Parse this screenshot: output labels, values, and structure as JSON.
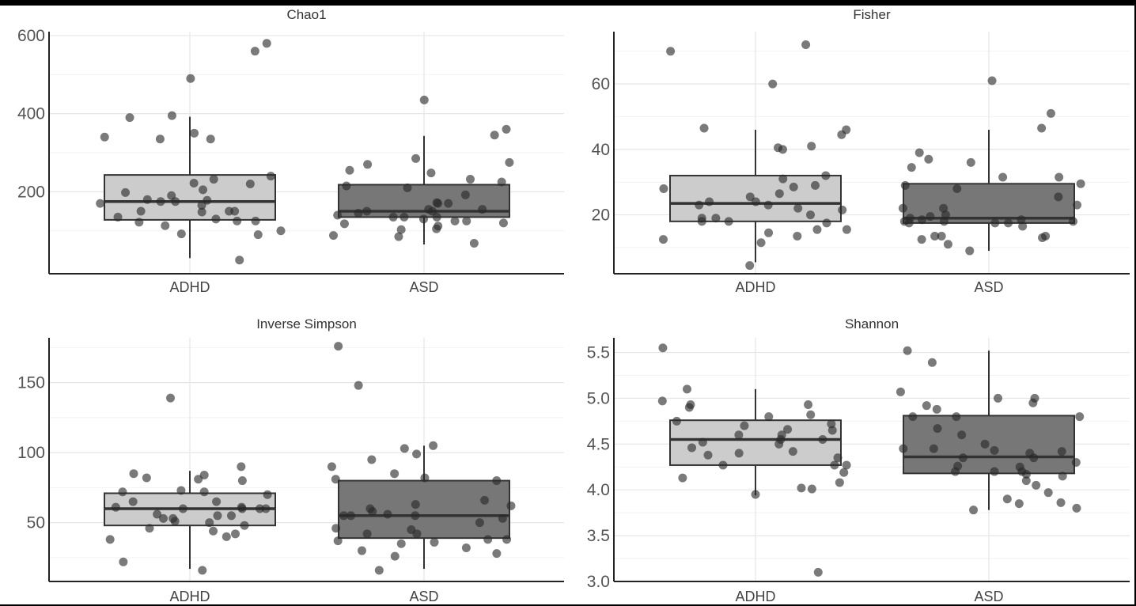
{
  "chart_data": [
    {
      "type": "box",
      "title": "Chao1",
      "categories": [
        "ADHD",
        "ASD"
      ],
      "yticks": [
        200,
        400,
        600
      ],
      "ylim": [
        -10,
        610
      ],
      "fill_colors": [
        "#cccccc",
        "#777777"
      ],
      "boxes": [
        {
          "group": "ADHD",
          "q1": 128,
          "median": 175,
          "q3": 243,
          "whisker_low": 30,
          "whisker_high": 392
        },
        {
          "group": "ASD",
          "q1": 135,
          "median": 150,
          "q3": 218,
          "whisker_low": 65,
          "whisker_high": 343
        }
      ],
      "points": [
        {
          "group": "ADHD",
          "values": [
            150,
            148,
            92,
            180,
            220,
            125,
            490,
            350,
            222,
            170,
            178,
            335,
            190,
            560,
            335,
            175,
            150,
            100,
            150,
            90,
            125,
            340,
            232,
            240,
            122,
            25,
            198,
            580,
            390,
            175,
            165,
            113,
            395,
            205,
            135,
            130
          ]
        },
        {
          "group": "ASD",
          "values": [
            118,
            85,
            135,
            360,
            248,
            135,
            105,
            170,
            172,
            103,
            225,
            155,
            270,
            232,
            125,
            275,
            285,
            120,
            435,
            155,
            130,
            255,
            215,
            210,
            345,
            112,
            145,
            150,
            68,
            88,
            170,
            140,
            135,
            150,
            125,
            192
          ]
        }
      ]
    },
    {
      "type": "box",
      "title": "Fisher",
      "categories": [
        "ADHD",
        "ASD"
      ],
      "yticks": [
        20,
        40,
        60
      ],
      "ylim": [
        2,
        76
      ],
      "fill_colors": [
        "#cccccc",
        "#777777"
      ],
      "boxes": [
        {
          "group": "ADHD",
          "q1": 18,
          "median": 23.5,
          "q3": 32,
          "whisker_low": 5.5,
          "whisker_high": 46
        },
        {
          "group": "ASD",
          "q1": 17.5,
          "median": 19,
          "q3": 29.5,
          "whisker_low": 9,
          "whisker_high": 46
        }
      ],
      "points": [
        {
          "group": "ADHD",
          "values": [
            28,
            18,
            22,
            15.5,
            15.5,
            11.5,
            40,
            46,
            60,
            24,
            18,
            29,
            40.5,
            41,
            32,
            25.5,
            20,
            72,
            23,
            23,
            26.5,
            12.5,
            70,
            46.5,
            44.5,
            19,
            14.5,
            19,
            31,
            4.5,
            17.5,
            21.5,
            13.5,
            28.5,
            24
          ]
        },
        {
          "group": "ASD",
          "values": [
            22,
            17.5,
            29.5,
            13.5,
            11,
            18,
            18,
            36,
            37,
            18.5,
            46.5,
            29,
            31.5,
            12.5,
            17.5,
            20,
            19,
            19.5,
            51,
            61,
            25.5,
            39,
            22,
            16.5,
            17.5,
            31.5,
            13.5,
            13,
            18.5,
            34.5,
            9,
            13.5,
            28,
            18,
            23
          ]
        }
      ]
    },
    {
      "type": "box",
      "title": "Inverse Simpson",
      "categories": [
        "ADHD",
        "ASD"
      ],
      "yticks": [
        50,
        100,
        150
      ],
      "ylim": [
        8,
        182
      ],
      "fill_colors": [
        "#cccccc",
        "#777777"
      ],
      "boxes": [
        {
          "group": "ADHD",
          "q1": 48,
          "median": 60,
          "q3": 71,
          "whisker_low": 17,
          "whisker_high": 87
        },
        {
          "group": "ASD",
          "q1": 39,
          "median": 55,
          "q3": 80,
          "whisker_low": 17,
          "whisker_high": 105
        }
      ],
      "points": [
        {
          "group": "ADHD",
          "values": [
            48,
            80,
            61,
            60,
            72,
            70,
            51,
            16,
            55,
            53,
            84,
            38,
            139,
            44,
            72,
            60,
            60,
            85,
            61,
            65,
            53,
            65,
            82,
            40,
            22,
            55,
            42,
            81,
            46,
            60,
            56,
            73,
            50,
            90
          ]
        },
        {
          "group": "ASD",
          "values": [
            28,
            35,
            103,
            176,
            55,
            82,
            58,
            42,
            45,
            55,
            38,
            99,
            37,
            81,
            85,
            38,
            46,
            50,
            95,
            16,
            105,
            90,
            62,
            42,
            148,
            36,
            66,
            32,
            63,
            55,
            53,
            26,
            60,
            56,
            80,
            30
          ]
        }
      ]
    },
    {
      "type": "box",
      "title": "Shannon",
      "categories": [
        "ADHD",
        "ASD"
      ],
      "yticks": [
        "3.0",
        "3.5",
        "4.0",
        "4.5",
        "5.0",
        "5.5"
      ],
      "ylim": [
        3,
        5.66
      ],
      "fill_colors": [
        "#cccccc",
        "#777777"
      ],
      "boxes": [
        {
          "group": "ADHD",
          "q1": 4.27,
          "median": 4.55,
          "q3": 4.76,
          "whisker_low": 3.94,
          "whisker_high": 5.1
        },
        {
          "group": "ASD",
          "q1": 4.18,
          "median": 4.36,
          "q3": 4.81,
          "whisker_low": 3.78,
          "whisker_high": 5.52
        }
      ],
      "points": [
        {
          "group": "ADHD",
          "values": [
            4.27,
            4.66,
            4.82,
            4.8,
            4.6,
            4.97,
            4.4,
            4.13,
            4.08,
            4.52,
            4.65,
            4.02,
            3.1,
            5.1,
            4.7,
            4.19,
            5.55,
            4.72,
            4.46,
            4.6,
            4.35,
            4.55,
            4.5,
            4.9,
            4.27,
            4.01,
            4.93,
            4.27,
            4.42,
            4.38,
            4.55,
            4.93,
            3.95,
            4.75
          ]
        },
        {
          "group": "ASD",
          "values": [
            5.0,
            4.45,
            3.8,
            4.95,
            4.25,
            4.6,
            4.92,
            3.86,
            4.2,
            4.5,
            4.45,
            4.8,
            4.42,
            5.52,
            5.39,
            4.4,
            4.8,
            4.35,
            3.85,
            4.67,
            3.78,
            4.26,
            4.15,
            4.2,
            4.05,
            4.8,
            3.97,
            4.3,
            5.07,
            4.43,
            4.17,
            5.0,
            4.1,
            4.88,
            3.9,
            4.35,
            4.2
          ]
        }
      ]
    }
  ]
}
